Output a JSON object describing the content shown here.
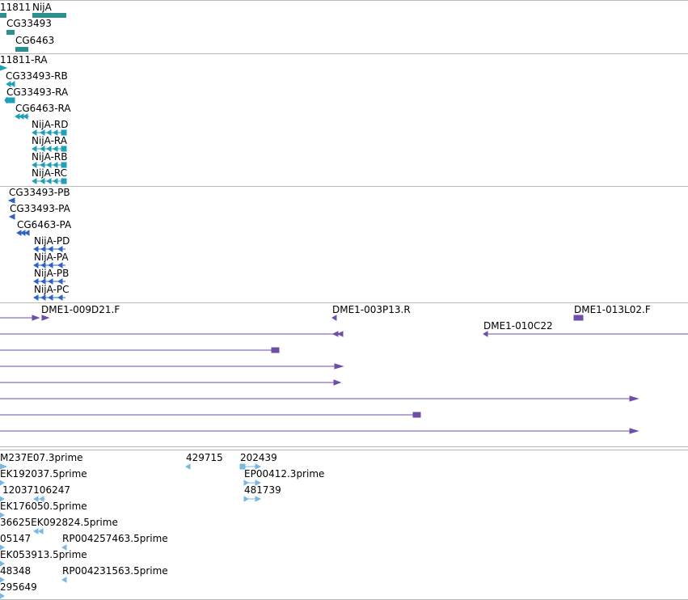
{
  "colors": {
    "gene": "#2e8f8f",
    "mrna": "#1fa0ba",
    "protein": "#2f63c5",
    "clone": "#6e4ea8",
    "est": "#79b8e0"
  },
  "genes": [
    "11811",
    "NijA",
    "CG33493",
    "CG6463"
  ],
  "transcripts": [
    "11811-RA",
    "CG33493-RB",
    "CG33493-RA",
    "CG6463-RA",
    "NijA-RD",
    "NijA-RA",
    "NijA-RB",
    "NijA-RC"
  ],
  "proteins": [
    "CG33493-PB",
    "CG33493-PA",
    "CG6463-PA",
    "NijA-PD",
    "NijA-PA",
    "NijA-PB",
    "NijA-PC"
  ],
  "clones": [
    "DME1-009D21.F",
    "DME1-003P13.R",
    "DME1-013L02.F",
    "DME1-010C22"
  ],
  "ests": [
    "M237E07.3prime",
    "429715",
    "202439",
    "EK192037.5prime",
    "EP00412.3prime",
    "12037106247",
    "481739",
    "EK176050.5prime",
    "36625EK092824.5prime",
    "05147",
    "RP004257463.5prime",
    "EK053913.5prime",
    "48348",
    "RP004231563.5prime",
    "295649"
  ]
}
